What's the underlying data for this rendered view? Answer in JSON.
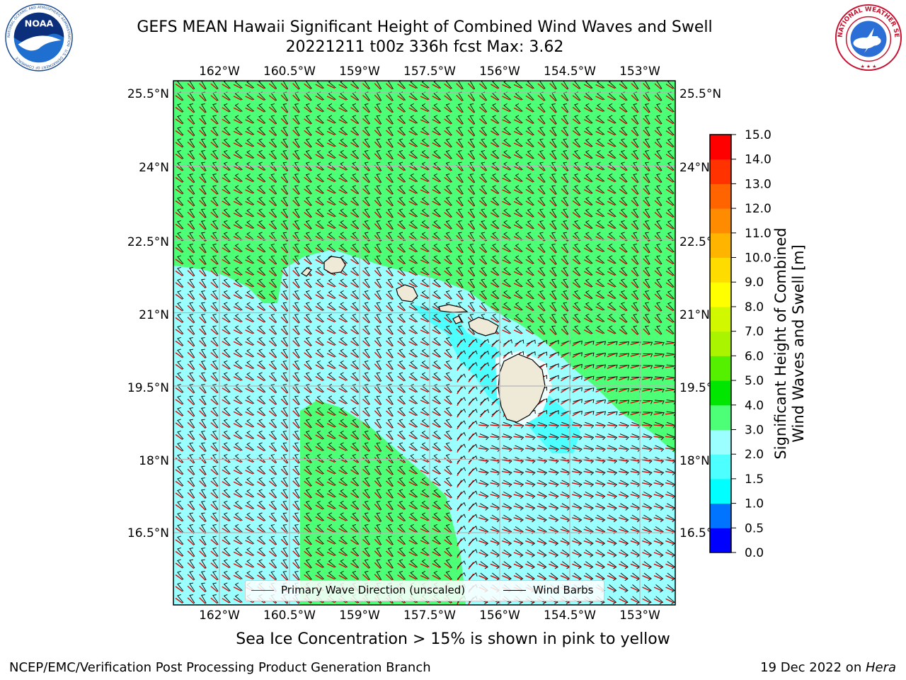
{
  "title": {
    "line1": "GEFS MEAN Hawaii Significant Height of Combined Wind Waves and Swell",
    "line2": "20221211 t00z 336h fcst   Max: 3.62"
  },
  "logos": {
    "noaa_text": "NOAA",
    "noaa_ring_text": "NATIONAL OCEANIC AND ATMOSPHERIC ADMINISTRATION · U.S. DEPARTMENT OF COMMERCE",
    "nws_ring_text": "NATIONAL WEATHER SERVICE"
  },
  "map": {
    "lon_labels": [
      "162°W",
      "160.5°W",
      "159°W",
      "157.5°W",
      "156°W",
      "154.5°W",
      "153°W"
    ],
    "lat_labels": [
      "25.5°N",
      "24°N",
      "22.5°N",
      "21°N",
      "19.5°N",
      "18°N",
      "16.5°N"
    ],
    "lon_values": [
      -162,
      -160.5,
      -159,
      -157.5,
      -156,
      -154.5,
      -153
    ],
    "lat_values": [
      25.5,
      24,
      22.5,
      21,
      19.5,
      18,
      16.5
    ],
    "lon_range": [
      -163,
      -152.3
    ],
    "lat_range": [
      15.0,
      25.7
    ],
    "land_color": "#efe9d8",
    "field_colors": {
      "green": "#4dff77",
      "light_cyan": "#9cffff",
      "cyan": "#4dffff"
    },
    "wave_arrow_color": "#e00000",
    "barb_color": "#000000"
  },
  "legend": {
    "wave_dir": "Primary Wave Direction (unscaled)",
    "barbs": "Wind Barbs"
  },
  "colorbar": {
    "label_line1": "Significant Height of Combined",
    "label_line2": "Wind Waves and Swell [m]",
    "ticks": [
      "0.0",
      "0.5",
      "1.0",
      "1.5",
      "2.0",
      "3.0",
      "4.0",
      "5.0",
      "6.0",
      "7.0",
      "8.0",
      "9.0",
      "10.0",
      "11.0",
      "12.0",
      "13.0",
      "14.0",
      "15.0"
    ],
    "colors": [
      "#0000ff",
      "#0073ff",
      "#00ffff",
      "#4dffff",
      "#9cffff",
      "#4dff77",
      "#00e600",
      "#55ef00",
      "#aaf400",
      "#d2f800",
      "#ffff00",
      "#ffdc00",
      "#ffb400",
      "#ff8c00",
      "#ff6400",
      "#ff3200",
      "#ff0000"
    ]
  },
  "note": "Sea Ice Concentration > 15% is shown in pink to yellow",
  "footer": {
    "left": "NCEP/EMC/Verification Post Processing Product Generation Branch",
    "right_date": "19 Dec 2022 on ",
    "right_host": "Hera"
  }
}
